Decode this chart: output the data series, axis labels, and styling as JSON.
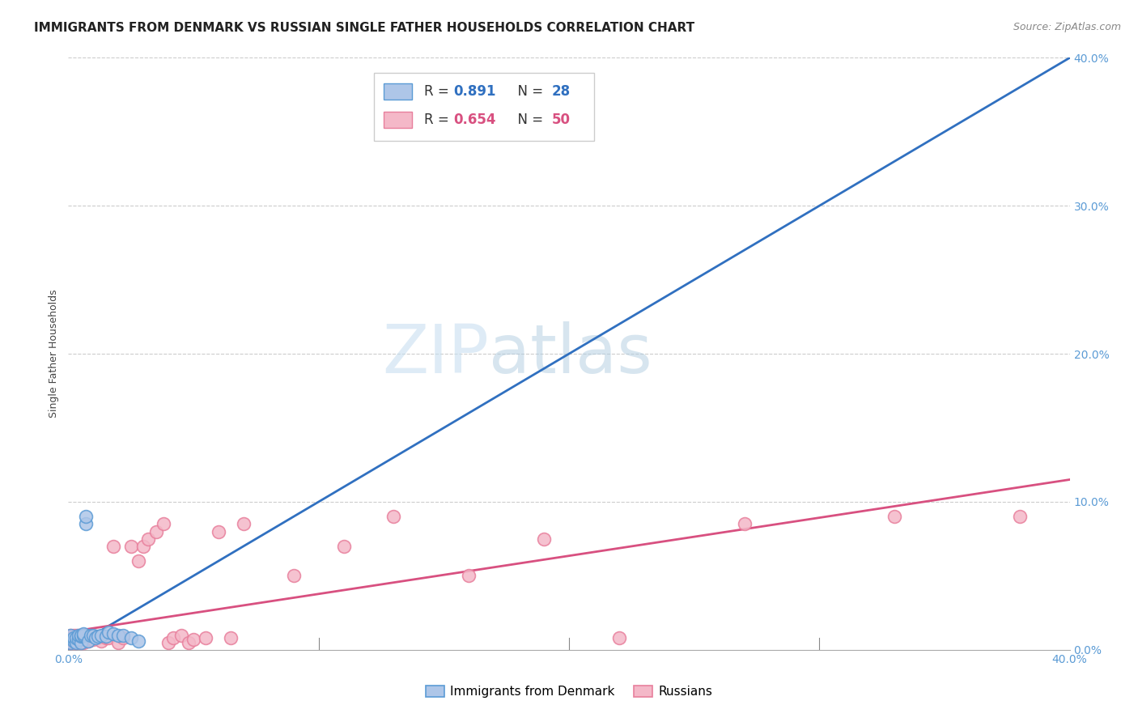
{
  "title": "IMMIGRANTS FROM DENMARK VS RUSSIAN SINGLE FATHER HOUSEHOLDS CORRELATION CHART",
  "source": "Source: ZipAtlas.com",
  "ylabel": "Single Father Households",
  "watermark_zip": "ZIP",
  "watermark_atlas": "atlas",
  "xlim": [
    0.0,
    0.4
  ],
  "ylim": [
    0.0,
    0.4
  ],
  "denmark_color": "#aec6e8",
  "denmark_edge_color": "#5b9bd5",
  "russia_color": "#f4b8c8",
  "russia_edge_color": "#e87f9c",
  "denmark_R": 0.891,
  "denmark_N": 28,
  "russia_R": 0.654,
  "russia_N": 50,
  "denmark_line_color": "#3070c0",
  "russia_line_color": "#d85080",
  "legend_denmark_label": "Immigrants from Denmark",
  "legend_russia_label": "Russians",
  "background_color": "#ffffff",
  "grid_color": "#cccccc",
  "tick_color": "#5b9bd5",
  "title_fontsize": 11,
  "axis_label_fontsize": 9,
  "tick_fontsize": 10,
  "dk_x": [
    0.001,
    0.001,
    0.002,
    0.002,
    0.003,
    0.003,
    0.004,
    0.004,
    0.005,
    0.005,
    0.005,
    0.006,
    0.006,
    0.007,
    0.007,
    0.008,
    0.009,
    0.01,
    0.011,
    0.012,
    0.013,
    0.015,
    0.016,
    0.018,
    0.02,
    0.022,
    0.025,
    0.028
  ],
  "dk_y": [
    0.005,
    0.01,
    0.006,
    0.008,
    0.005,
    0.008,
    0.007,
    0.01,
    0.005,
    0.009,
    0.01,
    0.01,
    0.011,
    0.085,
    0.09,
    0.006,
    0.01,
    0.01,
    0.008,
    0.009,
    0.01,
    0.009,
    0.012,
    0.011,
    0.01,
    0.01,
    0.008,
    0.006
  ],
  "ru_x": [
    0.001,
    0.001,
    0.002,
    0.002,
    0.002,
    0.003,
    0.003,
    0.003,
    0.004,
    0.004,
    0.005,
    0.005,
    0.006,
    0.006,
    0.007,
    0.008,
    0.009,
    0.01,
    0.011,
    0.012,
    0.013,
    0.015,
    0.016,
    0.018,
    0.02,
    0.022,
    0.025,
    0.028,
    0.03,
    0.032,
    0.035,
    0.038,
    0.04,
    0.042,
    0.045,
    0.048,
    0.05,
    0.055,
    0.06,
    0.065,
    0.07,
    0.09,
    0.11,
    0.13,
    0.16,
    0.19,
    0.22,
    0.27,
    0.33,
    0.38
  ],
  "ru_y": [
    0.005,
    0.01,
    0.005,
    0.007,
    0.01,
    0.005,
    0.007,
    0.01,
    0.006,
    0.01,
    0.005,
    0.01,
    0.005,
    0.008,
    0.007,
    0.006,
    0.007,
    0.007,
    0.009,
    0.008,
    0.006,
    0.008,
    0.008,
    0.07,
    0.005,
    0.008,
    0.07,
    0.06,
    0.07,
    0.075,
    0.08,
    0.085,
    0.005,
    0.008,
    0.01,
    0.005,
    0.007,
    0.008,
    0.08,
    0.008,
    0.085,
    0.05,
    0.07,
    0.09,
    0.05,
    0.075,
    0.008,
    0.085,
    0.09,
    0.09
  ],
  "dk_line_x": [
    0.0,
    0.4
  ],
  "dk_line_y": [
    0.0,
    0.4
  ],
  "ru_line_x": [
    0.0,
    0.4
  ],
  "ru_line_y": [
    0.012,
    0.115
  ]
}
